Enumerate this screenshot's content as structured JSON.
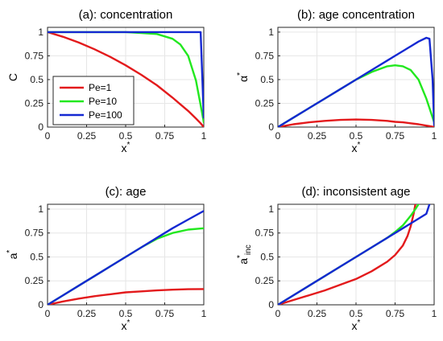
{
  "colors": {
    "pe1": "#e31a1c",
    "pe10": "#22e81f",
    "pe100": "#1428d2"
  },
  "legend": {
    "placement": "inside-lower-left of panel (a)",
    "entries": [
      "Pe=1",
      "Pe=10",
      "Pe=100"
    ]
  },
  "chart_data": [
    {
      "type": "line",
      "title": "(a): concentration",
      "xlabel": "x*",
      "ylabel": "C",
      "xlim": [
        0,
        1
      ],
      "ylim": [
        0,
        1
      ],
      "grid": true,
      "xticks": [
        "0",
        "0.25",
        "0.5",
        "0.75",
        "1"
      ],
      "yticks": [
        "0",
        "0.25",
        "0.5",
        "0.75",
        "1"
      ],
      "x": [
        0,
        0.1,
        0.2,
        0.3,
        0.4,
        0.5,
        0.6,
        0.7,
        0.8,
        0.85,
        0.9,
        0.95,
        0.98,
        1.0
      ],
      "series": [
        {
          "name": "Pe=1",
          "color": "#e31a1c",
          "values": [
            1.0,
            0.95,
            0.89,
            0.82,
            0.74,
            0.65,
            0.55,
            0.44,
            0.31,
            0.24,
            0.17,
            0.09,
            0.04,
            0.0
          ]
        },
        {
          "name": "Pe=10",
          "color": "#22e81f",
          "values": [
            1.0,
            1.0,
            1.0,
            1.0,
            1.0,
            1.0,
            0.99,
            0.98,
            0.93,
            0.87,
            0.75,
            0.49,
            0.23,
            0.05
          ]
        },
        {
          "name": "Pe=100",
          "color": "#1428d2",
          "values": [
            1.0,
            1.0,
            1.0,
            1.0,
            1.0,
            1.0,
            1.0,
            1.0,
            1.0,
            1.0,
            1.0,
            1.0,
            1.0,
            0.1
          ]
        }
      ]
    },
    {
      "type": "line",
      "title": "(b): age concentration",
      "xlabel": "x*",
      "ylabel": "α*",
      "xlim": [
        0,
        1
      ],
      "ylim": [
        0,
        1
      ],
      "grid": true,
      "xticks": [
        "0",
        "0.25",
        "0.5",
        "0.75",
        "1"
      ],
      "yticks": [
        "0",
        "0.25",
        "0.5",
        "0.75",
        "1"
      ],
      "x": [
        0,
        0.1,
        0.2,
        0.3,
        0.4,
        0.5,
        0.6,
        0.7,
        0.75,
        0.8,
        0.85,
        0.9,
        0.95,
        0.97,
        0.99,
        1.0
      ],
      "series": [
        {
          "name": "Pe=1",
          "color": "#e31a1c",
          "values": [
            0.0,
            0.03,
            0.05,
            0.065,
            0.075,
            0.08,
            0.075,
            0.065,
            0.055,
            0.05,
            0.04,
            0.03,
            0.015,
            0.01,
            0.003,
            0.0
          ]
        },
        {
          "name": "Pe=10",
          "color": "#22e81f",
          "values": [
            0.0,
            0.1,
            0.2,
            0.3,
            0.4,
            0.5,
            0.58,
            0.64,
            0.65,
            0.64,
            0.6,
            0.5,
            0.3,
            0.2,
            0.1,
            0.05
          ]
        },
        {
          "name": "Pe=100",
          "color": "#1428d2",
          "values": [
            0.0,
            0.1,
            0.2,
            0.3,
            0.4,
            0.5,
            0.6,
            0.7,
            0.75,
            0.8,
            0.85,
            0.9,
            0.94,
            0.93,
            0.5,
            0.02
          ]
        }
      ]
    },
    {
      "type": "line",
      "title": "(c): age",
      "xlabel": "x*",
      "ylabel": "a*",
      "xlim": [
        0,
        1
      ],
      "ylim": [
        0,
        1
      ],
      "grid": true,
      "xticks": [
        "0",
        "0.25",
        "0.5",
        "0.75",
        "1"
      ],
      "yticks": [
        "0",
        "0.25",
        "0.5",
        "0.75",
        "1"
      ],
      "x": [
        0,
        0.1,
        0.2,
        0.3,
        0.4,
        0.5,
        0.6,
        0.7,
        0.8,
        0.9,
        1.0
      ],
      "series": [
        {
          "name": "Pe=1",
          "color": "#e31a1c",
          "values": [
            0.0,
            0.035,
            0.065,
            0.09,
            0.11,
            0.13,
            0.14,
            0.15,
            0.158,
            0.163,
            0.165
          ]
        },
        {
          "name": "Pe=10",
          "color": "#22e81f",
          "values": [
            0.0,
            0.1,
            0.2,
            0.3,
            0.4,
            0.5,
            0.6,
            0.69,
            0.75,
            0.785,
            0.8
          ]
        },
        {
          "name": "Pe=100",
          "color": "#1428d2",
          "values": [
            0.0,
            0.1,
            0.2,
            0.3,
            0.4,
            0.5,
            0.6,
            0.7,
            0.8,
            0.89,
            0.98
          ]
        }
      ]
    },
    {
      "type": "line",
      "title": "(d): inconsistent age",
      "xlabel": "x*",
      "ylabel": "a*",
      "ylabel_sub": "inc",
      "xlim": [
        0,
        1
      ],
      "ylim": [
        0,
        1
      ],
      "grid": true,
      "xticks": [
        "0",
        "0.25",
        "0.5",
        "0.75",
        "1"
      ],
      "yticks": [
        "0",
        "0.25",
        "0.5",
        "0.75",
        "1"
      ],
      "series": [
        {
          "name": "Pe=1",
          "color": "#e31a1c",
          "x": [
            0,
            0.1,
            0.2,
            0.3,
            0.4,
            0.5,
            0.6,
            0.7,
            0.75,
            0.8,
            0.83,
            0.85,
            0.87,
            0.88
          ],
          "values": [
            0.0,
            0.05,
            0.1,
            0.15,
            0.21,
            0.27,
            0.35,
            0.45,
            0.52,
            0.62,
            0.72,
            0.82,
            0.96,
            1.05
          ]
        },
        {
          "name": "Pe=10",
          "color": "#22e81f",
          "x": [
            0,
            0.1,
            0.2,
            0.3,
            0.4,
            0.5,
            0.6,
            0.7,
            0.75,
            0.8,
            0.85,
            0.88,
            0.9
          ],
          "values": [
            0.0,
            0.1,
            0.2,
            0.3,
            0.4,
            0.5,
            0.6,
            0.7,
            0.76,
            0.83,
            0.93,
            1.0,
            1.05
          ]
        },
        {
          "name": "Pe=100",
          "color": "#1428d2",
          "x": [
            0,
            0.2,
            0.4,
            0.6,
            0.8,
            0.9,
            0.95,
            0.97
          ],
          "values": [
            0.0,
            0.2,
            0.4,
            0.6,
            0.8,
            0.9,
            0.95,
            1.05
          ]
        }
      ]
    }
  ]
}
